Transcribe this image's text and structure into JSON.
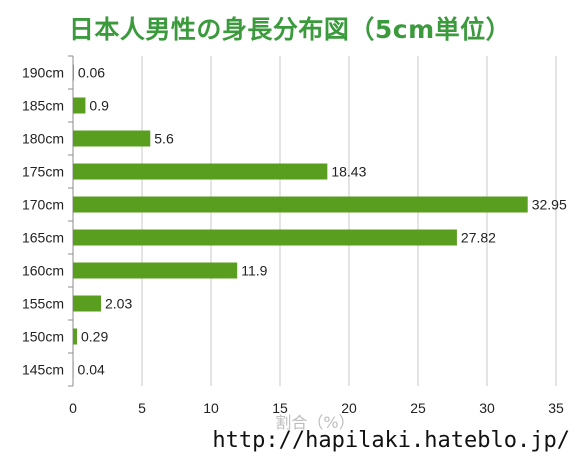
{
  "title": "日本人男性の身長分布図（5cm単位）",
  "watermark": "http://hapilaki.hateblo.jp/",
  "chart_data": {
    "type": "bar",
    "orientation": "horizontal",
    "categories": [
      "145cm",
      "150cm",
      "155cm",
      "160cm",
      "165cm",
      "170cm",
      "175cm",
      "180cm",
      "185cm",
      "190cm"
    ],
    "values": [
      0.04,
      0.29,
      2.03,
      11.9,
      27.82,
      32.95,
      18.43,
      5.6,
      0.9,
      0.06
    ],
    "value_labels": [
      "0.04",
      "0.29",
      "2.03",
      "11.9",
      "27.82",
      "32.95",
      "18.43",
      "5.6",
      "0.9",
      "0.06"
    ],
    "xlabel": "割合（%）",
    "ylabel": "",
    "xlim": [
      0,
      35
    ],
    "xticks": [
      0,
      5,
      10,
      15,
      20,
      25,
      30,
      35
    ],
    "grid": "vertical",
    "bar_color": "#5a9e1f"
  }
}
